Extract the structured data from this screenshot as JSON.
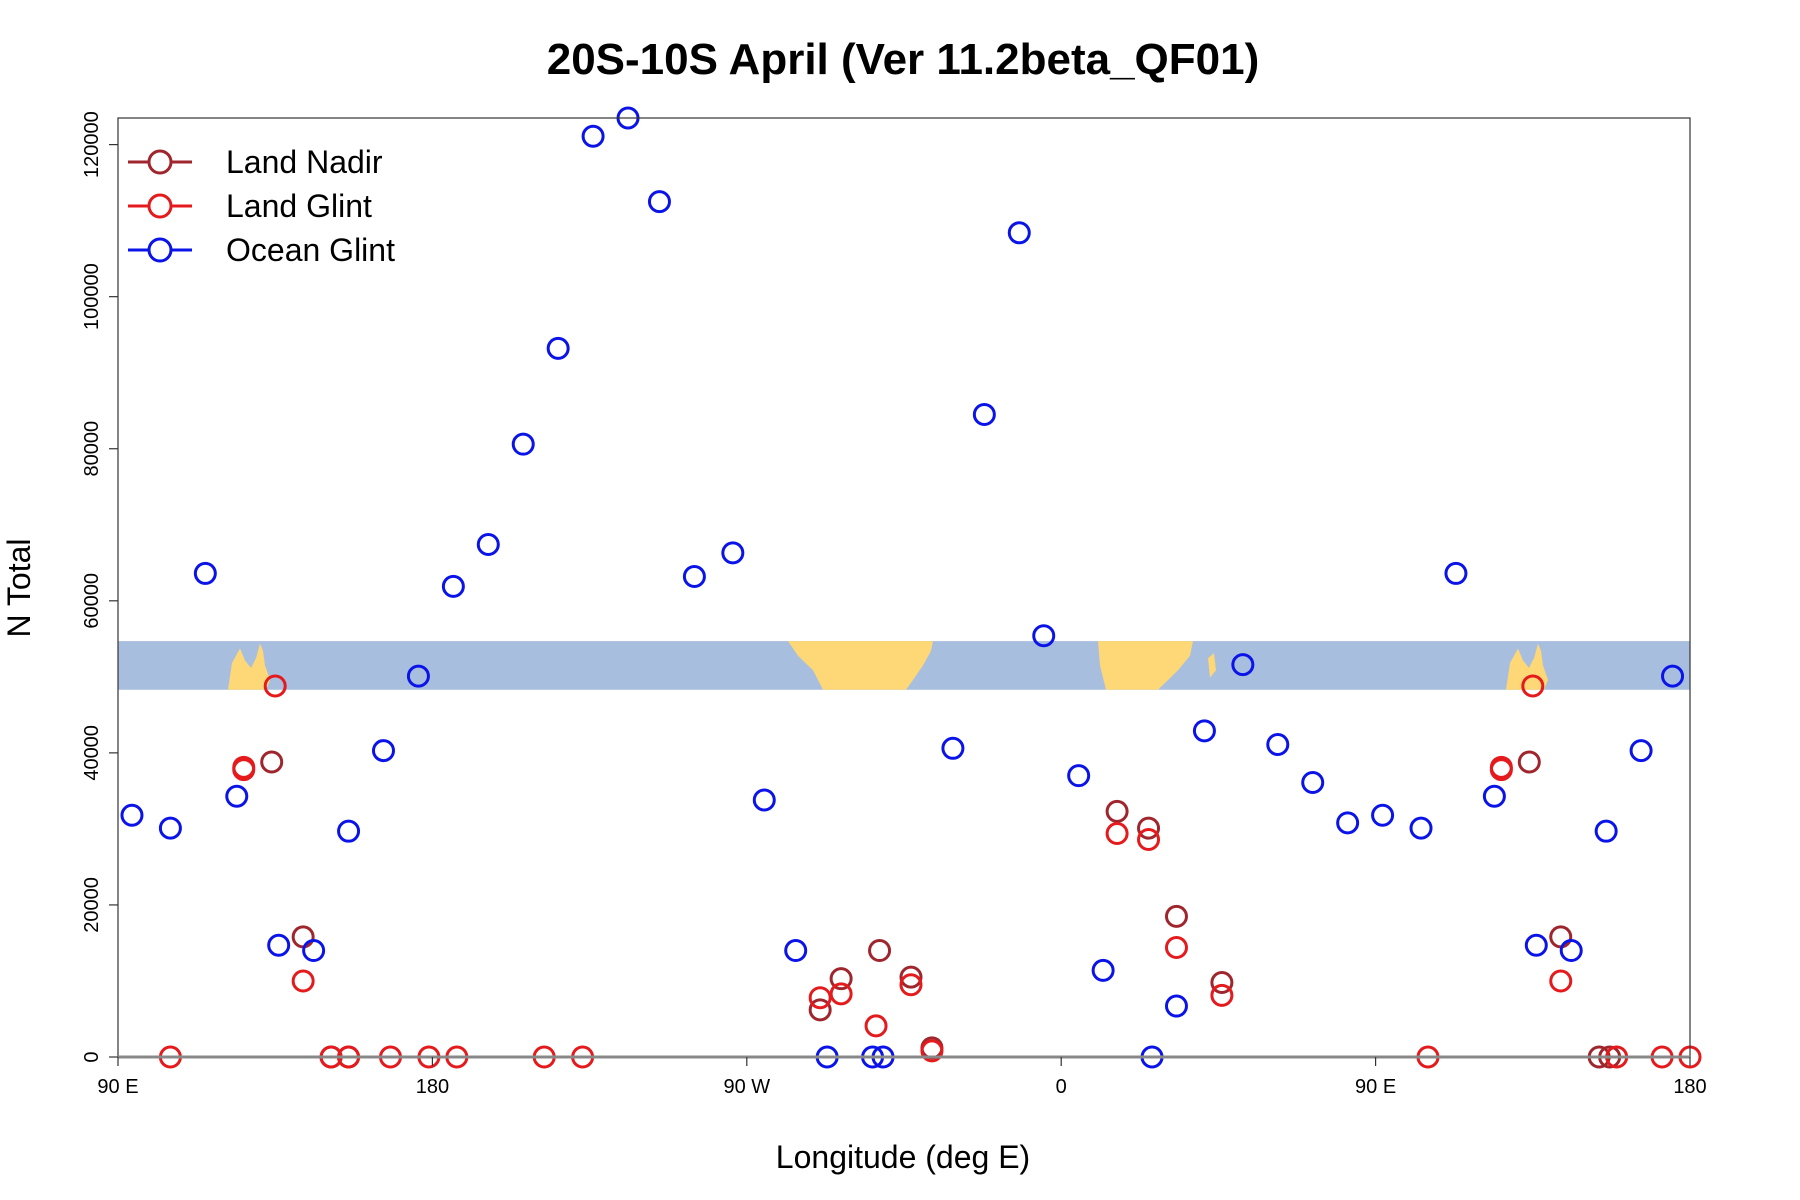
{
  "chart_data": {
    "type": "scatter",
    "title": "20S-10S April (Ver 11.2beta_QF01)",
    "xlabel": "Longitude (deg E)",
    "ylabel": "N Total",
    "xlim": [
      90,
      540
    ],
    "ylim": [
      0,
      123500
    ],
    "x_ticks": [
      {
        "value": 90,
        "label": "90 E"
      },
      {
        "value": 180,
        "label": "180"
      },
      {
        "value": 270,
        "label": "90 W"
      },
      {
        "value": 360,
        "label": "0"
      },
      {
        "value": 450,
        "label": "90 E"
      },
      {
        "value": 540,
        "label": "180"
      }
    ],
    "y_ticks": [
      {
        "value": 0,
        "label": "0"
      },
      {
        "value": 20000,
        "label": "20000"
      },
      {
        "value": 40000,
        "label": "40000"
      },
      {
        "value": 60000,
        "label": "60000"
      },
      {
        "value": 80000,
        "label": "80000"
      },
      {
        "value": 100000,
        "label": "100000"
      },
      {
        "value": 120000,
        "label": "120000"
      }
    ],
    "legend_position": "top-left",
    "map_band": {
      "y_from": 48300,
      "y_to": 54700,
      "ocean_color": "#a7bedf",
      "land_color": "#fed776"
    },
    "series": [
      {
        "name": "Land Nadir",
        "color": "#a0262e",
        "points": [
          [
            134,
            38800
          ],
          [
            143,
            15800
          ],
          [
            151,
            0
          ],
          [
            156,
            0
          ],
          [
            291,
            6200
          ],
          [
            297,
            10300
          ],
          [
            308,
            14000
          ],
          [
            317,
            10500
          ],
          [
            323,
            1200
          ],
          [
            376,
            32300
          ],
          [
            385,
            30100
          ],
          [
            393,
            18500
          ],
          [
            406,
            9800
          ],
          [
            494,
            38800
          ],
          [
            503,
            15800
          ],
          [
            514,
            0
          ],
          [
            517,
            0
          ]
        ]
      },
      {
        "name": "Land Glint",
        "color": "#e41a1c",
        "points": [
          [
            105,
            0
          ],
          [
            126,
            37800
          ],
          [
            126,
            38100
          ],
          [
            135,
            48800
          ],
          [
            143,
            10000
          ],
          [
            151,
            0
          ],
          [
            156,
            0
          ],
          [
            168,
            0
          ],
          [
            179,
            0
          ],
          [
            187,
            0
          ],
          [
            212,
            0
          ],
          [
            223,
            0
          ],
          [
            291,
            7800
          ],
          [
            297,
            8300
          ],
          [
            307,
            4100
          ],
          [
            317,
            9500
          ],
          [
            323,
            800
          ],
          [
            376,
            29400
          ],
          [
            385,
            28600
          ],
          [
            393,
            14400
          ],
          [
            406,
            8100
          ],
          [
            465,
            0
          ],
          [
            486,
            37800
          ],
          [
            486,
            38100
          ],
          [
            495,
            48800
          ],
          [
            503,
            10000
          ],
          [
            519,
            0
          ],
          [
            532,
            0
          ],
          [
            540,
            0
          ]
        ]
      },
      {
        "name": "Ocean Glint",
        "color": "#0b14e8",
        "points": [
          [
            94,
            31800
          ],
          [
            105,
            30100
          ],
          [
            115,
            63600
          ],
          [
            124,
            34300
          ],
          [
            136,
            14700
          ],
          [
            146,
            14000
          ],
          [
            156,
            29700
          ],
          [
            166,
            40300
          ],
          [
            176,
            50100
          ],
          [
            186,
            61900
          ],
          [
            196,
            67400
          ],
          [
            206,
            80600
          ],
          [
            216,
            93200
          ],
          [
            226,
            121100
          ],
          [
            236,
            123500
          ],
          [
            245,
            112500
          ],
          [
            255,
            63200
          ],
          [
            266,
            66300
          ],
          [
            275,
            33800
          ],
          [
            284,
            14000
          ],
          [
            293,
            0
          ],
          [
            306,
            0
          ],
          [
            309,
            0
          ],
          [
            329,
            40600
          ],
          [
            338,
            84500
          ],
          [
            348,
            108400
          ],
          [
            355,
            55400
          ],
          [
            365,
            37000
          ],
          [
            372,
            11400
          ],
          [
            386,
            0
          ],
          [
            393,
            6700
          ],
          [
            401,
            42900
          ],
          [
            412,
            51600
          ],
          [
            422,
            41100
          ],
          [
            432,
            36100
          ],
          [
            442,
            30800
          ],
          [
            452,
            31800
          ],
          [
            463,
            30100
          ],
          [
            473,
            63600
          ],
          [
            484,
            34300
          ],
          [
            496,
            14700
          ],
          [
            506,
            14000
          ],
          [
            516,
            29700
          ],
          [
            526,
            40300
          ],
          [
            535,
            50100
          ]
        ]
      }
    ]
  }
}
